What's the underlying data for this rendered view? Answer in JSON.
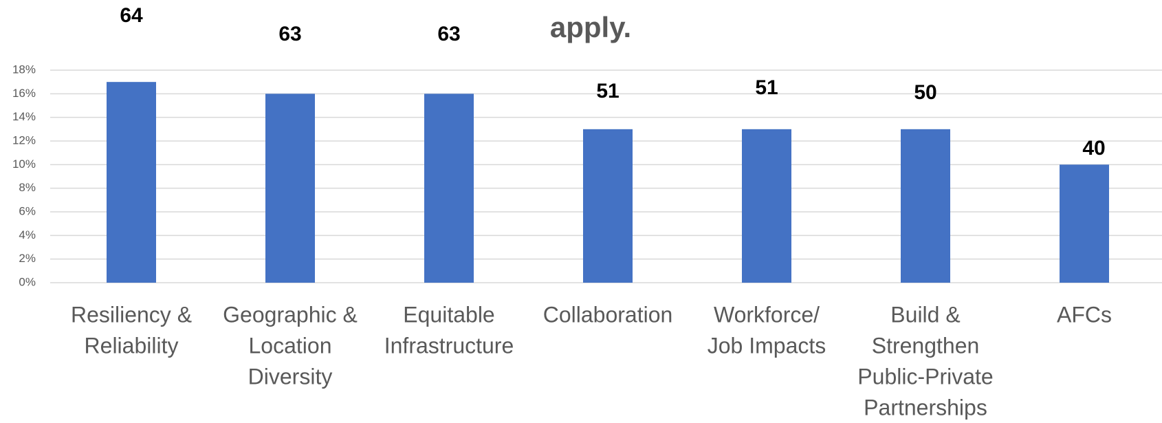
{
  "chart_data": {
    "type": "bar",
    "title": "apply.",
    "categories": [
      [
        "Resiliency &",
        "Reliability"
      ],
      [
        "Geographic &",
        "Location",
        "Diversity"
      ],
      [
        "Equitable",
        "Infrastructure"
      ],
      [
        "Collaboration"
      ],
      [
        "Workforce/",
        "Job Impacts"
      ],
      [
        "Build &",
        "Strengthen",
        "Public-Private",
        "Partnerships"
      ],
      [
        "AFCs"
      ]
    ],
    "values": [
      17,
      16,
      16,
      13,
      13,
      13,
      10
    ],
    "counts": [
      64,
      63,
      63,
      51,
      51,
      50,
      40
    ],
    "color": "#4472c4",
    "ylim": [
      0,
      18
    ],
    "yticks": [
      {
        "value": 0,
        "label": "0%"
      },
      {
        "value": 2,
        "label": "2%"
      },
      {
        "value": 4,
        "label": "4%"
      },
      {
        "value": 6,
        "label": "6%"
      },
      {
        "value": 8,
        "label": "8%"
      },
      {
        "value": 10,
        "label": "10%"
      },
      {
        "value": 12,
        "label": "12%"
      },
      {
        "value": 14,
        "label": "14%"
      },
      {
        "value": 16,
        "label": "16%"
      },
      {
        "value": 18,
        "label": "18%"
      }
    ],
    "grid": true
  }
}
